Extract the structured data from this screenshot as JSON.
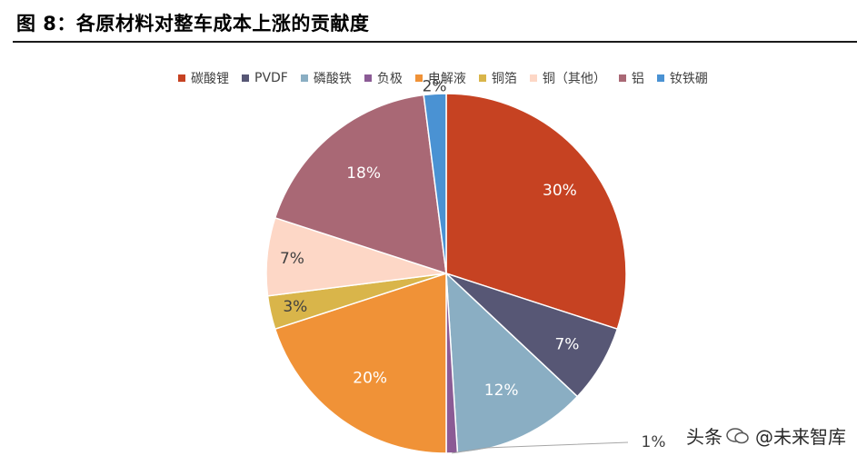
{
  "figure_title": "图 8：各原材料对整车成本上涨的贡献度",
  "watermark": {
    "prefix": "头条",
    "account": "@未来智库",
    "icon": "wechat-bubble-icon"
  },
  "chart_data": {
    "type": "pie",
    "title": "图 8：各原材料对整车成本上涨的贡献度",
    "legend_position": "top",
    "start_angle_deg": 0,
    "direction": "clockwise",
    "slices": [
      {
        "name": "碳酸锂",
        "value": 30,
        "label": "30%",
        "color": "#C64222"
      },
      {
        "name": "PVDF",
        "value": 7,
        "label": "7%",
        "color": "#575775"
      },
      {
        "name": "磷酸铁",
        "value": 12,
        "label": "12%",
        "color": "#8AAEC3"
      },
      {
        "name": "负极",
        "value": 1,
        "label": "1%",
        "color": "#8B5B95"
      },
      {
        "name": "电解液",
        "value": 20,
        "label": "20%",
        "color": "#F09237"
      },
      {
        "name": "铜箔",
        "value": 3,
        "label": "3%",
        "color": "#D9B54A"
      },
      {
        "name": "铜（其他）",
        "value": 7,
        "label": "7%",
        "color": "#FDD7C6"
      },
      {
        "name": "铝",
        "value": 18,
        "label": "18%",
        "color": "#A96875"
      },
      {
        "name": "钕铁硼",
        "value": 2,
        "label": "2%",
        "color": "#4A92D3"
      }
    ]
  }
}
